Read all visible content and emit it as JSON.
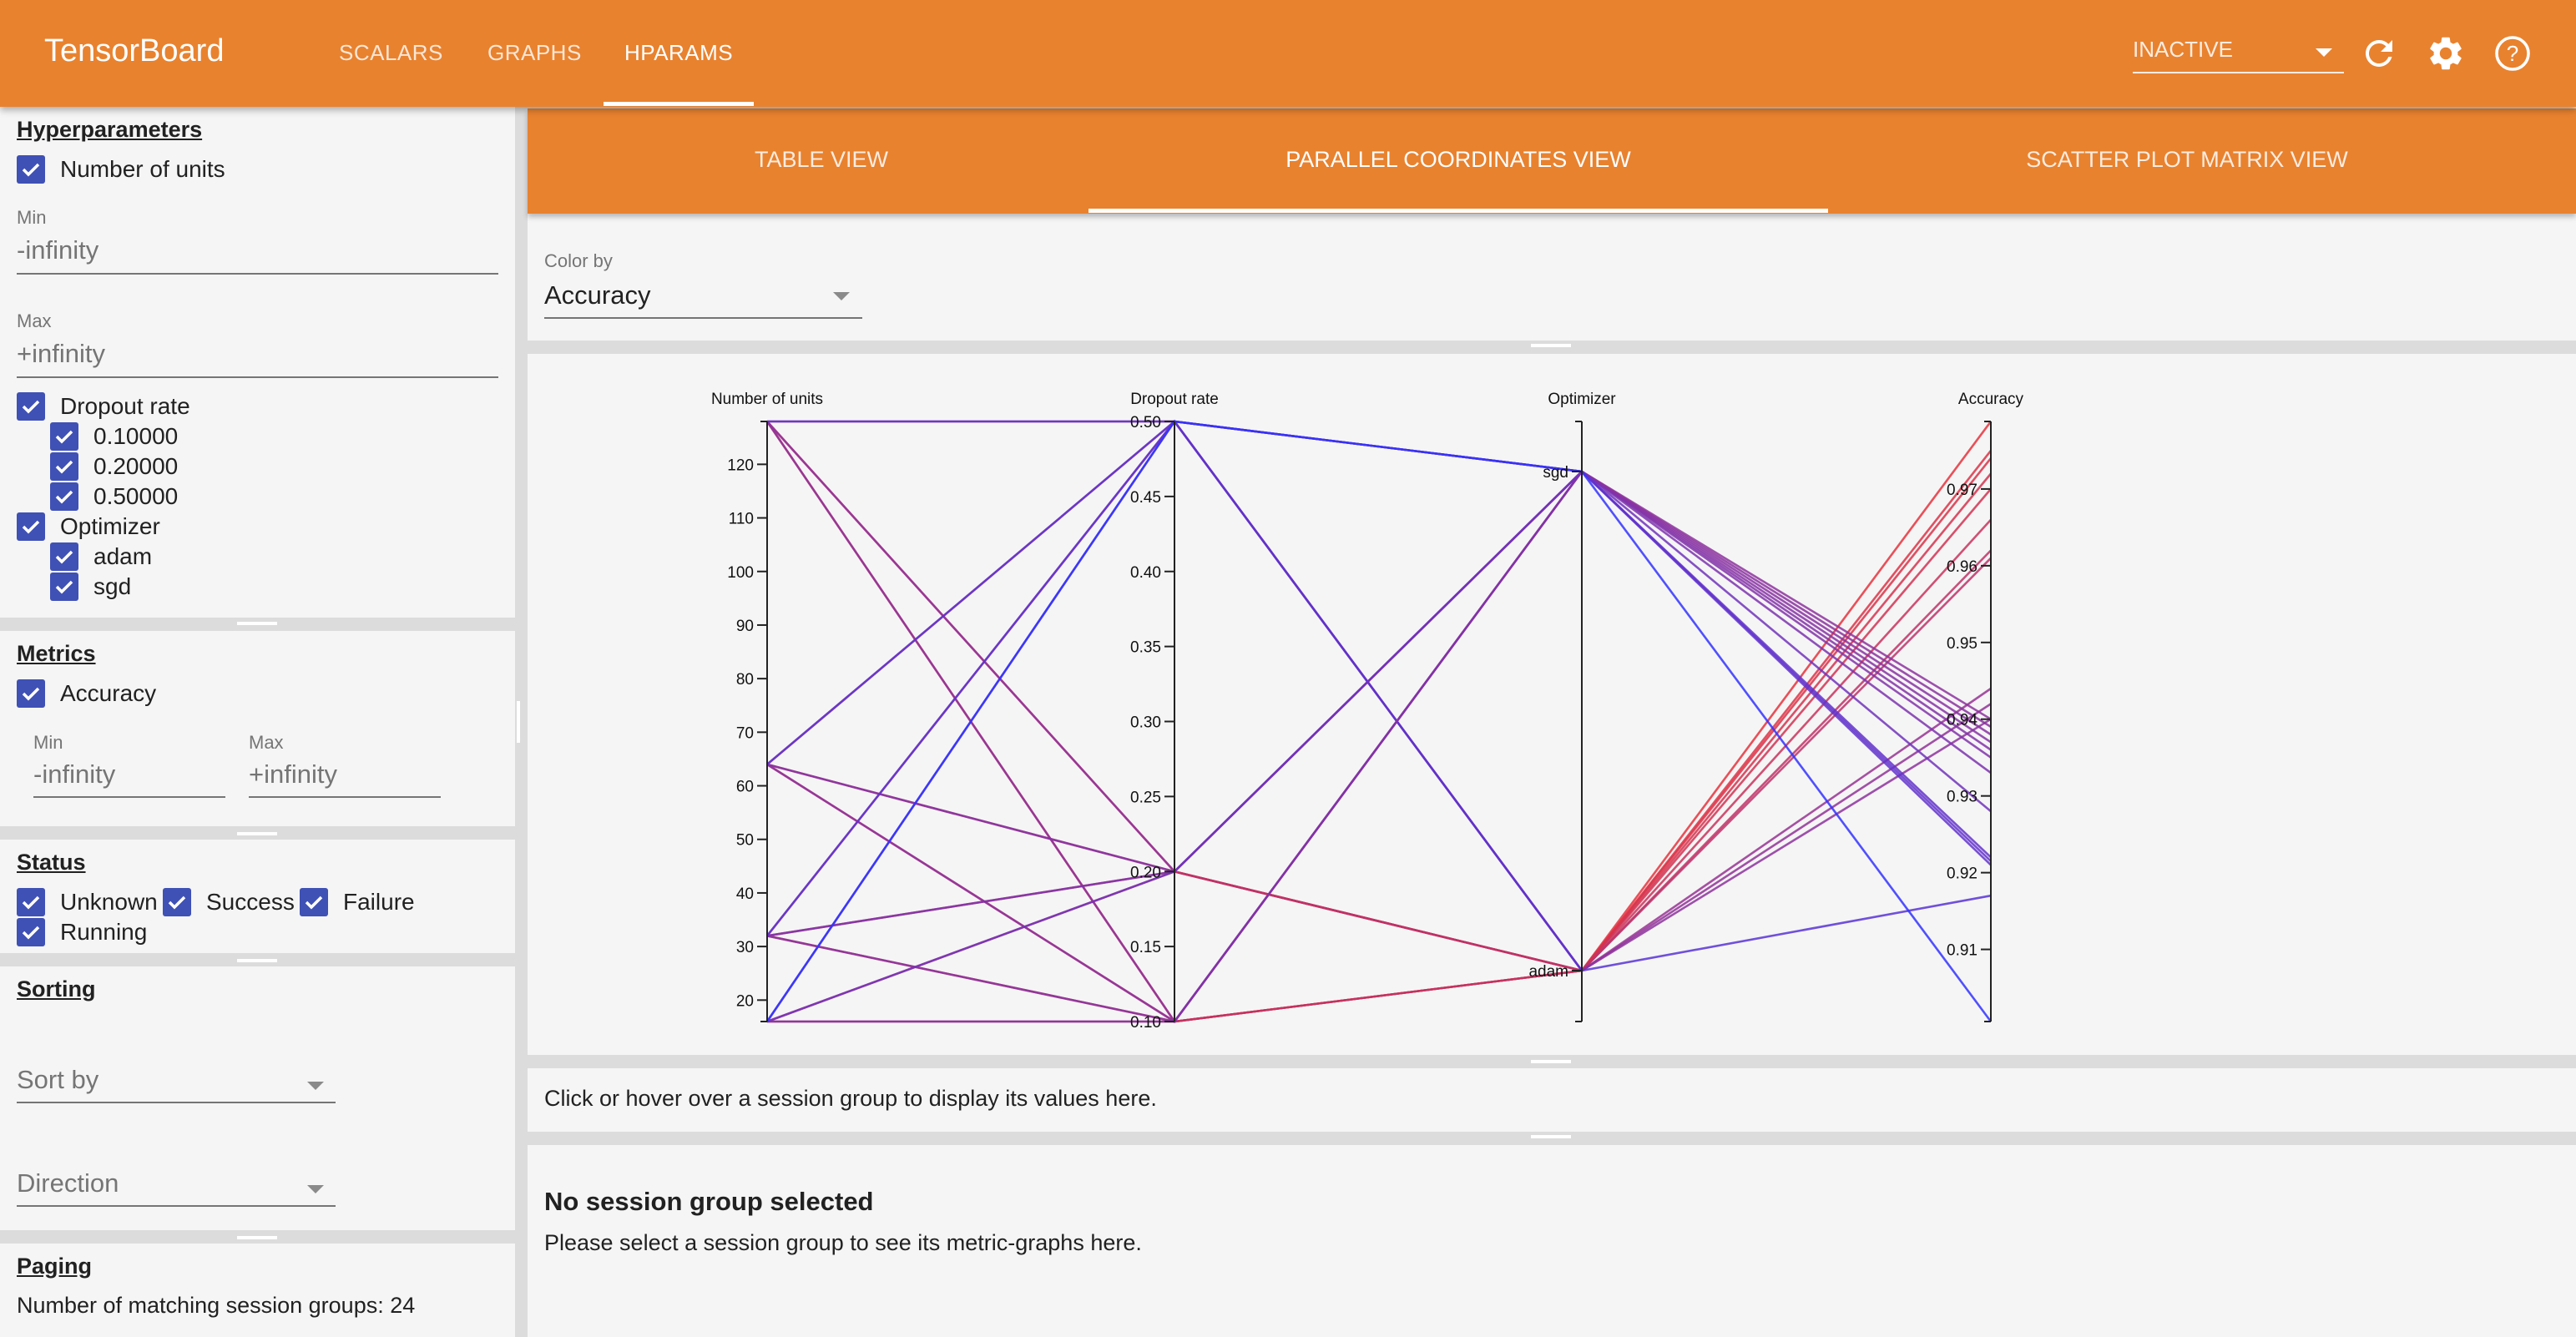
{
  "header": {
    "title": "TensorBoard",
    "tabs": [
      {
        "label": "SCALARS"
      },
      {
        "label": "GRAPHS"
      },
      {
        "label": "HPARAMS",
        "active": true
      }
    ],
    "run_selector": "INACTIVE",
    "icons": [
      "refresh-icon",
      "settings-gear-icon",
      "help-icon"
    ],
    "accent": "#e8822f"
  },
  "sidebar": {
    "hyperparameters": {
      "heading": "Hyperparameters",
      "units": {
        "label": "Number of units",
        "checked": true,
        "min_label": "Min",
        "min_value": "-infinity",
        "max_label": "Max",
        "max_value": "+infinity"
      },
      "dropout": {
        "label": "Dropout rate",
        "checked": true,
        "values": [
          "0.10000",
          "0.20000",
          "0.50000"
        ]
      },
      "optimizer": {
        "label": "Optimizer",
        "checked": true,
        "values": [
          "adam",
          "sgd"
        ]
      }
    },
    "metrics": {
      "heading": "Metrics",
      "accuracy": {
        "label": "Accuracy",
        "checked": true,
        "min_label": "Min",
        "min_value": "-infinity",
        "max_label": "Max",
        "max_value": "+infinity"
      }
    },
    "status": {
      "heading": "Status",
      "options": [
        "Unknown",
        "Success",
        "Failure",
        "Running"
      ]
    },
    "sorting": {
      "heading": "Sorting",
      "sort_by": "Sort by",
      "direction": "Direction"
    },
    "paging": {
      "heading": "Paging",
      "matching": "Number of matching session groups: 24"
    },
    "checkbox_color": "#3f51b5"
  },
  "subtabs": [
    {
      "label": "TABLE VIEW"
    },
    {
      "label": "PARALLEL COORDINATES VIEW",
      "active": true
    },
    {
      "label": "SCATTER PLOT MATRIX VIEW"
    }
  ],
  "color_by": {
    "label": "Color by",
    "value": "Accuracy"
  },
  "info": {
    "hover_hint": "Click or hover over a session group to display its values here."
  },
  "details": {
    "title": "No session group selected",
    "message": "Please select a session group to see its metric-graphs here."
  },
  "chart_data": {
    "type": "parallel-coordinates",
    "axes": [
      {
        "name": "Number of units",
        "domain": [
          16,
          128
        ],
        "ticks": [
          20,
          30,
          40,
          50,
          60,
          70,
          80,
          90,
          100,
          110,
          120
        ]
      },
      {
        "name": "Dropout rate",
        "domain": [
          0.1,
          0.5
        ],
        "ticks": [
          "0.10",
          "0.15",
          "0.20",
          "0.25",
          "0.30",
          "0.35",
          "0.40",
          "0.45",
          "0.50"
        ]
      },
      {
        "name": "Optimizer",
        "categories": [
          "sgd",
          "adam"
        ]
      },
      {
        "name": "Accuracy",
        "domain": [
          0.9006,
          0.9788
        ],
        "ticks": [
          "0.91",
          "0.92",
          "0.93",
          "0.94",
          "0.95",
          "0.96",
          "0.97"
        ]
      }
    ],
    "color_scale": {
      "low": "#3232ff",
      "high": "#e6323c"
    },
    "sessions": [
      [
        128,
        0.1,
        "adam",
        0.9788
      ],
      [
        64,
        0.1,
        "adam",
        0.975
      ],
      [
        32,
        0.1,
        "adam",
        0.974
      ],
      [
        16,
        0.1,
        "adam",
        0.962
      ],
      [
        128,
        0.2,
        "adam",
        0.972
      ],
      [
        64,
        0.2,
        "adam",
        0.97
      ],
      [
        32,
        0.2,
        "adam",
        0.966
      ],
      [
        16,
        0.2,
        "adam",
        0.961
      ],
      [
        128,
        0.5,
        "adam",
        0.944
      ],
      [
        64,
        0.5,
        "adam",
        0.942
      ],
      [
        32,
        0.5,
        "adam",
        0.94
      ],
      [
        16,
        0.5,
        "adam",
        0.917
      ],
      [
        128,
        0.1,
        "sgd",
        0.939
      ],
      [
        64,
        0.1,
        "sgd",
        0.938
      ],
      [
        32,
        0.1,
        "sgd",
        0.937
      ],
      [
        16,
        0.1,
        "sgd",
        0.936
      ],
      [
        128,
        0.2,
        "sgd",
        0.94
      ],
      [
        64,
        0.2,
        "sgd",
        0.935
      ],
      [
        32,
        0.2,
        "sgd",
        0.933
      ],
      [
        16,
        0.2,
        "sgd",
        0.928
      ],
      [
        128,
        0.5,
        "sgd",
        0.922
      ],
      [
        64,
        0.5,
        "sgd",
        0.9215
      ],
      [
        32,
        0.5,
        "sgd",
        0.921
      ],
      [
        16,
        0.5,
        "sgd",
        0.9006
      ]
    ]
  }
}
